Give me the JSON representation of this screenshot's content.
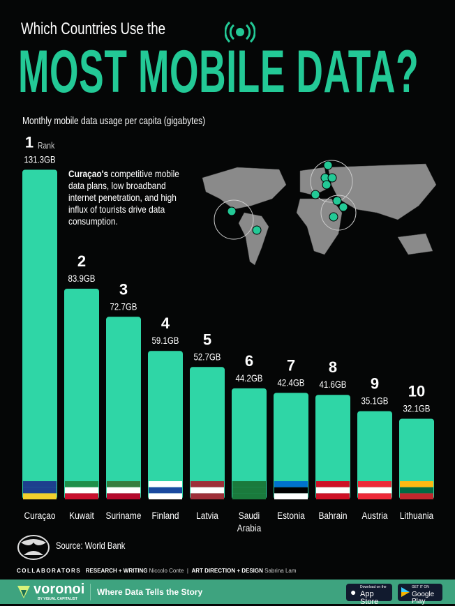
{
  "header": {
    "supertitle": "Which Countries Use the",
    "title": "MOST MOBILE DATA?",
    "subtitle": "Monthly mobile data usage per capita (gigabytes)",
    "rank_label": "Rank"
  },
  "annotation": {
    "bold": "Curaçao's",
    "text": " competitive mobile data plans, low broadband internet penetration, and high influx of tourists drive data consumption."
  },
  "chart_data": {
    "type": "bar",
    "title": "Which Countries Use the MOST MOBILE DATA?",
    "ylabel": "Monthly mobile data usage per capita (gigabytes)",
    "ylim": [
      0,
      135
    ],
    "categories": [
      "Curaçao",
      "Kuwait",
      "Suriname",
      "Finland",
      "Latvia",
      "Saudi Arabia",
      "Estonia",
      "Bahrain",
      "Austria",
      "Lithuania"
    ],
    "ranks": [
      1,
      2,
      3,
      4,
      5,
      6,
      7,
      8,
      9,
      10
    ],
    "values": [
      131.3,
      83.9,
      72.7,
      59.1,
      52.7,
      44.2,
      42.4,
      41.6,
      35.1,
      32.1
    ],
    "labels": [
      "131.3GB",
      "83.9GB",
      "72.7GB",
      "59.1GB",
      "52.7GB",
      "44.2GB",
      "42.4GB",
      "41.6GB",
      "35.1GB",
      "32.1GB"
    ],
    "unit": "GB"
  },
  "colors": {
    "accent": "#23c996",
    "bar": "#2fd6a6",
    "footer": "#3ea37f"
  },
  "footer": {
    "source": "Source: World Bank",
    "collaborators": "COLLABORATORS",
    "research_label": "RESEARCH + WRITING",
    "research_name": "Niccolo Conte",
    "design_label": "ART DIRECTION + DESIGN",
    "design_name": "Sabrina Lam",
    "brand": "voronoi",
    "brand_sub": "BY VISUAL CAPITALIST",
    "tagline": "Where Data Tells the Story",
    "appstore_small": "Download on the",
    "appstore": "App Store",
    "play_small": "GET IT ON",
    "play": "Google Play"
  }
}
